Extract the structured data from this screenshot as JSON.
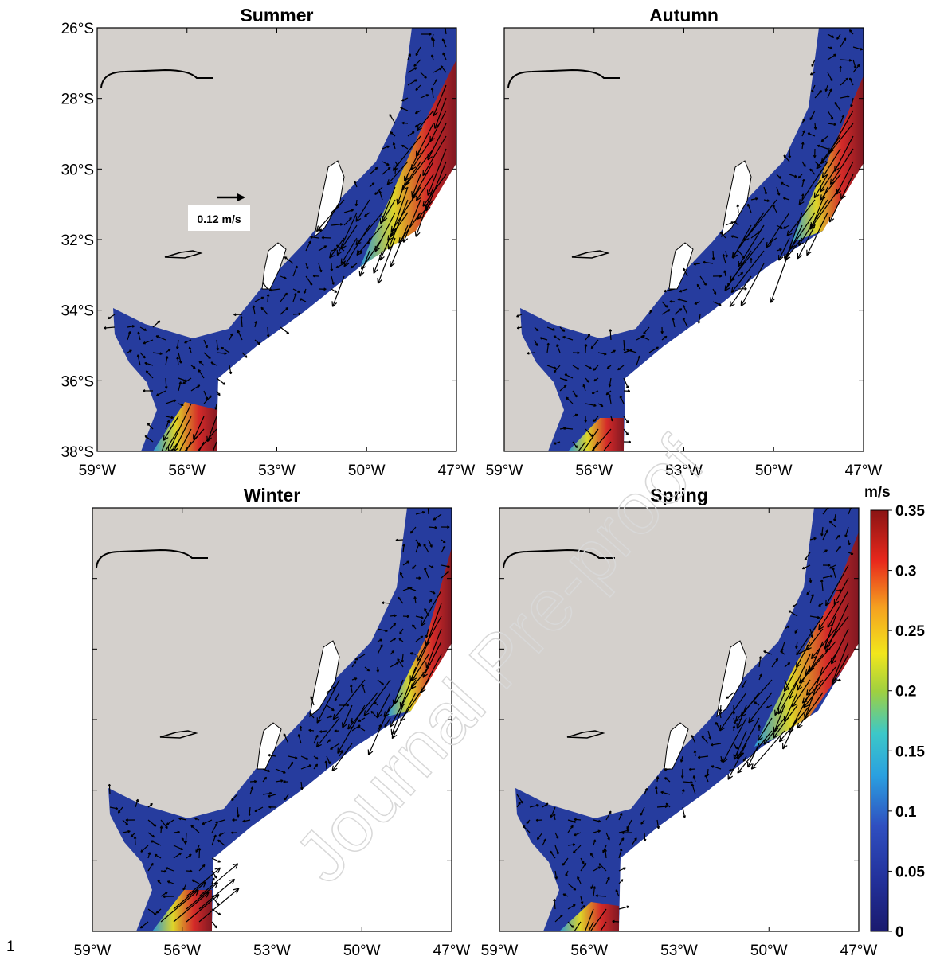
{
  "line_number": "1",
  "watermark": "Journal Pre-proof",
  "reference_arrow": "0.12 m/s",
  "panels": [
    {
      "title": "Summer"
    },
    {
      "title": "Autumn"
    },
    {
      "title": "Winter"
    },
    {
      "title": "Spring"
    }
  ],
  "latitude_ticks": [
    "26°S",
    "28°S",
    "30°S",
    "32°S",
    "34°S",
    "36°S",
    "38°S"
  ],
  "longitude_ticks": [
    "59°W",
    "56°W",
    "53°W",
    "50°W",
    "47°W"
  ],
  "colorbar": {
    "label": "m/s",
    "lim": [
      0,
      0.35
    ],
    "ticks": [
      0,
      0.05,
      0.1,
      0.15,
      0.2,
      0.25,
      0.3,
      0.35
    ]
  }
}
